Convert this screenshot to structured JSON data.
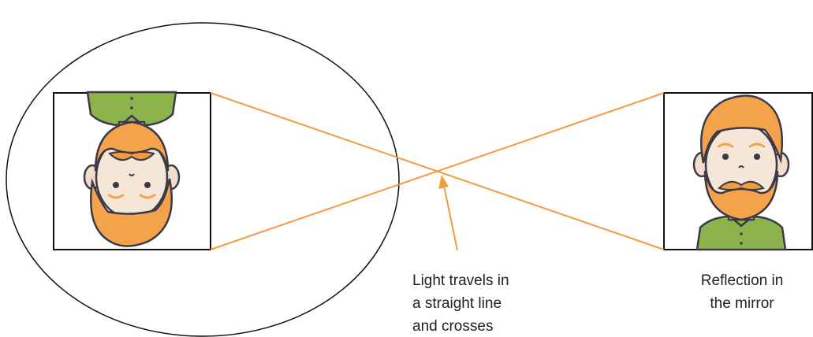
{
  "caption_left": {
    "lines": [
      "Light travels in",
      "a straight line",
      "and crosses"
    ]
  },
  "caption_right": {
    "lines": [
      "Reflection in",
      "the mirror"
    ]
  }
}
